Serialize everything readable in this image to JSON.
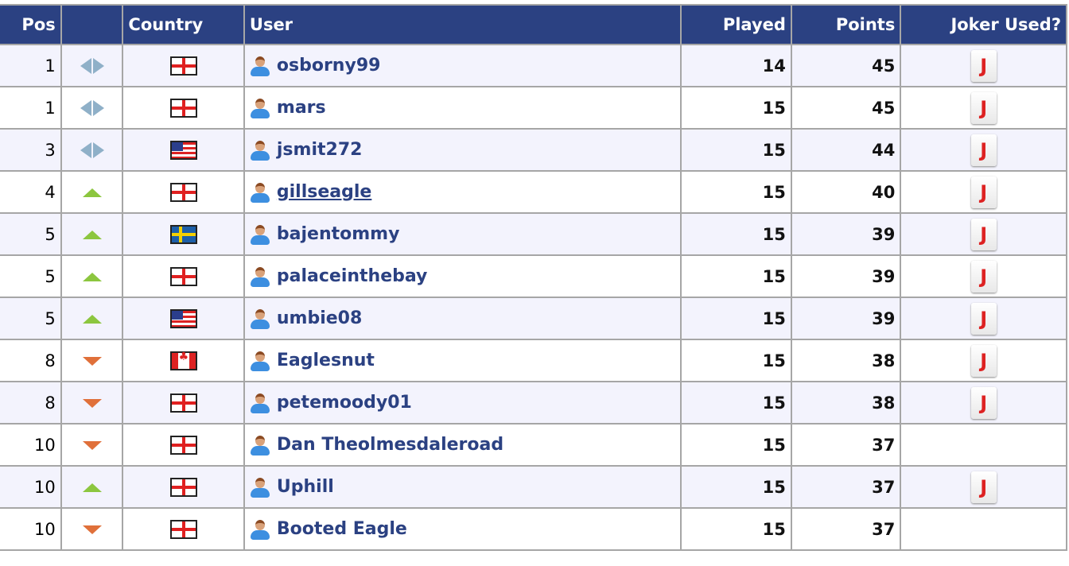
{
  "headers": {
    "pos": "Pos",
    "move": "",
    "country": "Country",
    "user": "User",
    "played": "Played",
    "points": "Points",
    "joker": "Joker Used?"
  },
  "colors": {
    "header_bg": "#2b4182",
    "row_alt": "#f3f3fd",
    "up": "#8cc63f",
    "down": "#e0703a",
    "same": "#8fb0c8"
  },
  "rows": [
    {
      "pos": "1",
      "move": "same",
      "country": "England",
      "user": "osborny99",
      "played": "14",
      "points": "45",
      "joker": "J"
    },
    {
      "pos": "1",
      "move": "same",
      "country": "England",
      "user": "mars",
      "played": "15",
      "points": "45",
      "joker": "J"
    },
    {
      "pos": "3",
      "move": "same",
      "country": "USA",
      "user": "jsmit272",
      "played": "15",
      "points": "44",
      "joker": "J"
    },
    {
      "pos": "4",
      "move": "up",
      "country": "England",
      "user": "gillseagle",
      "played": "15",
      "points": "40",
      "joker": "J",
      "hover": true
    },
    {
      "pos": "5",
      "move": "up",
      "country": "Sweden",
      "user": "bajentommy",
      "played": "15",
      "points": "39",
      "joker": "J"
    },
    {
      "pos": "5",
      "move": "up",
      "country": "England",
      "user": "palaceinthebay",
      "played": "15",
      "points": "39",
      "joker": "J"
    },
    {
      "pos": "5",
      "move": "up",
      "country": "USA",
      "user": "umbie08",
      "played": "15",
      "points": "39",
      "joker": "J"
    },
    {
      "pos": "8",
      "move": "down",
      "country": "Canada",
      "user": "Eaglesnut",
      "played": "15",
      "points": "38",
      "joker": "J"
    },
    {
      "pos": "8",
      "move": "down",
      "country": "England",
      "user": "petemoody01",
      "played": "15",
      "points": "38",
      "joker": "J"
    },
    {
      "pos": "10",
      "move": "down",
      "country": "England",
      "user": "Dan Theolmesdaleroad",
      "played": "15",
      "points": "37",
      "joker": ""
    },
    {
      "pos": "10",
      "move": "up",
      "country": "England",
      "user": "Uphill",
      "played": "15",
      "points": "37",
      "joker": "J"
    },
    {
      "pos": "10",
      "move": "down",
      "country": "England",
      "user": "Booted Eagle",
      "played": "15",
      "points": "37",
      "joker": ""
    }
  ]
}
